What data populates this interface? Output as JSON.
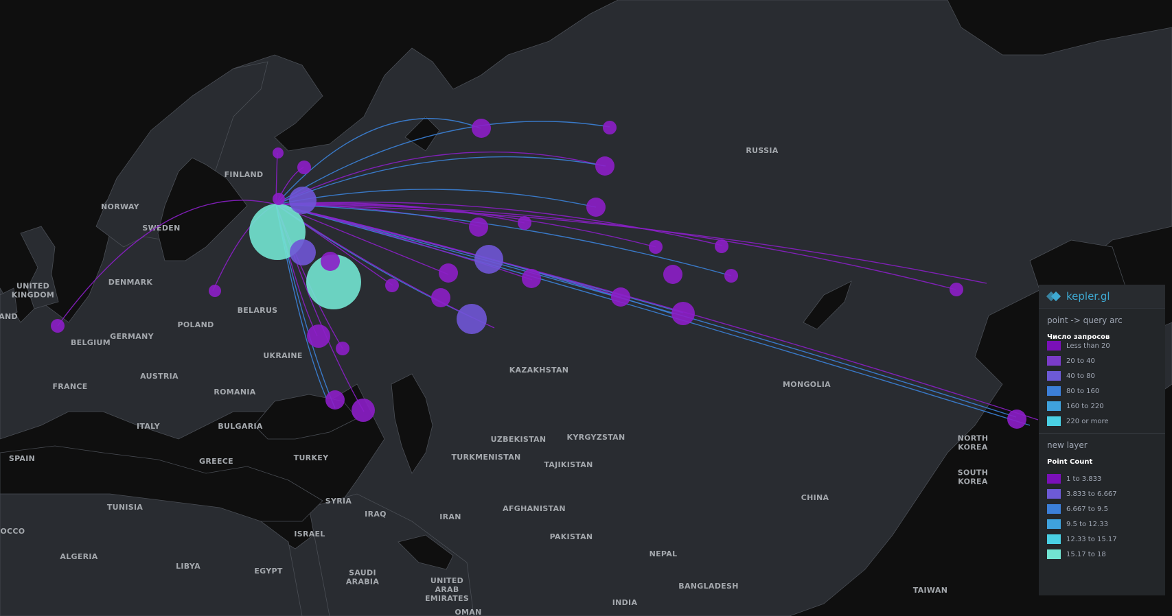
{
  "map": {
    "countries": [
      "RUSSIA",
      "FINLAND",
      "NORWAY",
      "SWEDEN",
      "DENMARK",
      "UNITED KINGDOM",
      "AND",
      "BELARUS",
      "POLAND",
      "GERMANY",
      "BELGIUM",
      "UKRAINE",
      "AUSTRIA",
      "FRANCE",
      "ROMANIA",
      "ITALY",
      "BULGARIA",
      "SPAIN",
      "GREECE",
      "TURKEY",
      "KAZAKHSTAN",
      "UZBEKISTAN",
      "KYRGYZSTAN",
      "TURKMENISTAN",
      "TAJIKISTAN",
      "MONGOLIA",
      "NORTH KOREA",
      "SOUTH KOREA",
      "CHINA",
      "SYRIA",
      "IRAQ",
      "IRAN",
      "AFGHANISTAN",
      "PAKISTAN",
      "TUNISIA",
      "ROCCO",
      "ALGERIA",
      "LIBYA",
      "EGYPT",
      "ISRAEL",
      "SAUDI ARABIA",
      "UNITED ARAB EMIRATES",
      "OMAN",
      "NEPAL",
      "BANGLADESH",
      "INDIA",
      "TAIWAN"
    ],
    "colors": {
      "land": "#292c31",
      "water": "#0f0f0f",
      "arc_purple": "#8a1fc7",
      "arc_blue": "#3b82d8",
      "point_purple": "#8c1ec8",
      "point_violet": "#6f55d6",
      "point_cyan": "#72e4d2"
    }
  },
  "legend": {
    "title": "kepler.gl",
    "layers": [
      {
        "name": "point -> query arc",
        "field": "Число запросов",
        "items": [
          {
            "label": "Less than 20",
            "color": "#7a10b8"
          },
          {
            "label": "20 to 40",
            "color": "#7a3cc8"
          },
          {
            "label": "40 to 80",
            "color": "#6d5ad6"
          },
          {
            "label": "80 to 160",
            "color": "#3c7fd8"
          },
          {
            "label": "160 to 220",
            "color": "#3fa2dd"
          },
          {
            "label": "220 or more",
            "color": "#4ad0e4"
          }
        ]
      },
      {
        "name": "new layer",
        "field": "Point Count",
        "items": [
          {
            "label": "1 to 3.833",
            "color": "#7a10b8"
          },
          {
            "label": "3.833 to 6.667",
            "color": "#6d5ad6"
          },
          {
            "label": "6.667 to 9.5",
            "color": "#3c7fd8"
          },
          {
            "label": "9.5 to 12.33",
            "color": "#3fa2dd"
          },
          {
            "label": "12.33 to 15.17",
            "color": "#4ad0e4"
          },
          {
            "label": "15.17 to 18",
            "color": "#72e4d2"
          }
        ]
      }
    ]
  }
}
